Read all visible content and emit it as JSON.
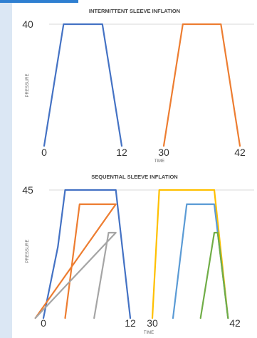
{
  "chart_data": [
    {
      "type": "line",
      "title": "INTERMITTENT SLEEVE INFLATION",
      "xlabel": "TIME",
      "ylabel": "PRESSURE",
      "x_tick_labels": [
        {
          "label": "0",
          "x": 0
        },
        {
          "label": "12",
          "x": 12
        },
        {
          "label": "30",
          "x": 30
        },
        {
          "label": "42",
          "x": 42
        }
      ],
      "y_tick_labels": [
        {
          "label": "40",
          "y": 40
        }
      ],
      "ylim": [
        0,
        40
      ],
      "grid": "horizontal-top",
      "series": [
        {
          "color": "#4472c4",
          "points": [
            [
              0,
              0
            ],
            [
              3,
              40
            ],
            [
              9,
              40
            ],
            [
              12,
              0
            ]
          ]
        },
        {
          "color": "#ed7d31",
          "points": [
            [
              30,
              0
            ],
            [
              33,
              40
            ],
            [
              39,
              40
            ],
            [
              42,
              0
            ]
          ]
        }
      ]
    },
    {
      "type": "line",
      "title": "SEQUENTIAL SLEEVE INFLATION",
      "xlabel": "TIME",
      "ylabel": "PRESSURE",
      "x_tick_labels": [
        {
          "label": "0",
          "x": 0
        },
        {
          "label": "12",
          "x": 12
        },
        {
          "label": "30",
          "x": 30
        },
        {
          "label": "42",
          "x": 42
        }
      ],
      "y_tick_labels": [
        {
          "label": "45",
          "y": 45
        }
      ],
      "ylim": [
        0,
        45
      ],
      "grid": "horizontal-top",
      "series": [
        {
          "color": "#4472c4",
          "points": [
            [
              0,
              0
            ],
            [
              2,
              25
            ],
            [
              3,
              45
            ],
            [
              10,
              45
            ],
            [
              12,
              0
            ]
          ]
        },
        {
          "color": "#ed7d31",
          "points": [
            [
              3,
              0
            ],
            [
              5,
              40
            ],
            [
              10,
              40
            ],
            [
              13,
              0
            ]
          ]
        },
        {
          "color": "#a5a5a5",
          "points": [
            [
              7,
              0
            ],
            [
              9,
              30
            ],
            [
              10,
              30
            ],
            [
              13,
              0
            ]
          ]
        },
        {
          "color": "#ffc000",
          "points": [
            [
              30,
              0
            ],
            [
              31,
              45
            ],
            [
              39,
              45
            ],
            [
              41,
              0
            ]
          ]
        },
        {
          "color": "#5b9bd5",
          "points": [
            [
              33,
              0
            ],
            [
              35,
              40
            ],
            [
              39,
              40
            ],
            [
              41,
              0
            ]
          ]
        },
        {
          "color": "#70ad47",
          "points": [
            [
              37,
              0
            ],
            [
              39,
              30
            ],
            [
              39.5,
              30
            ],
            [
              41,
              0
            ]
          ]
        }
      ]
    }
  ]
}
